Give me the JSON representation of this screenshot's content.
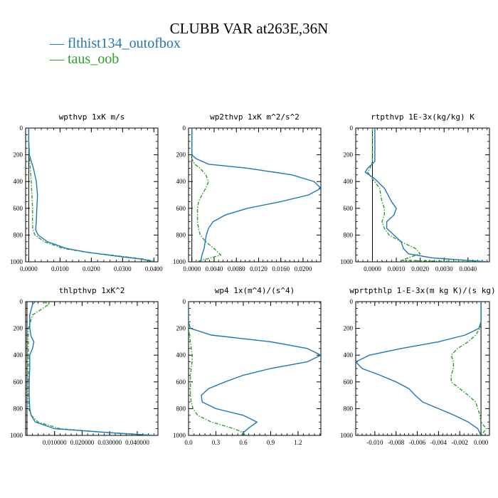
{
  "title": "CLUBB VAR at263E,36N",
  "legend": [
    {
      "label": "flthist134_outofbox",
      "color": "#1f77b4",
      "dash": "solid"
    },
    {
      "label": "taus_oob",
      "color": "#2ca02c",
      "dash": "dashdot"
    }
  ],
  "chart_data": [
    {
      "type": "line",
      "title": "wpthvp  1xK m/s",
      "ylim": [
        1000,
        0
      ],
      "xlim": [
        -0.001,
        0.0413
      ],
      "xticks": [
        0,
        0.01,
        0.02,
        0.03,
        0.04
      ],
      "xtick_labels": [
        "0.0000",
        "0.0100",
        "0.0200",
        "0.0300",
        "0.0400"
      ],
      "yticks": [
        0,
        200,
        400,
        600,
        800,
        1000
      ],
      "ytick_labels": [
        "0",
        "200",
        "400",
        "600",
        "800",
        "1000"
      ],
      "y": [
        0,
        100,
        200,
        250,
        300,
        400,
        500,
        600,
        700,
        760,
        800,
        850,
        900,
        930,
        960,
        980,
        1000
      ],
      "series": [
        {
          "name": "flthist134_outofbox",
          "color": "#1f77b4",
          "values": [
            0,
            0,
            0.0002,
            0.0008,
            0.0015,
            0.0024,
            0.0028,
            0.0026,
            0.0024,
            0.0022,
            0.003,
            0.006,
            0.012,
            0.019,
            0.029,
            0.036,
            0.04
          ]
        },
        {
          "name": "taus_oob",
          "color": "#2ca02c",
          "values": [
            0,
            0,
            0,
            0.0003,
            0.0005,
            0.0008,
            0.001,
            0.0012,
            0.0012,
            0.0013,
            0.002,
            0.005,
            0.011,
            0.019,
            0.03,
            0.037,
            0.0405
          ]
        }
      ]
    },
    {
      "type": "line",
      "title": "wp2thvp  1xK m^2/s^2",
      "ylim": [
        1000,
        0
      ],
      "xlim": [
        -0.0006,
        0.0232
      ],
      "xticks": [
        0,
        0.004,
        0.008,
        0.012,
        0.016,
        0.02
      ],
      "xtick_labels": [
        "0.0000",
        "0.0040",
        "0.0080",
        "0.0120",
        "0.0160",
        "0.0200"
      ],
      "yticks": [
        0,
        200,
        400,
        600,
        800,
        1000
      ],
      "ytick_labels": [
        "0",
        "200",
        "400",
        "600",
        "800",
        "1000"
      ],
      "y": [
        0,
        150,
        200,
        230,
        270,
        300,
        350,
        400,
        450,
        500,
        550,
        600,
        650,
        700,
        750,
        800,
        850,
        900,
        950,
        1000
      ],
      "series": [
        {
          "name": "flthist134_outofbox",
          "color": "#1f77b4",
          "values": [
            0,
            0,
            0,
            0.0008,
            0.003,
            0.01,
            0.018,
            0.022,
            0.0232,
            0.021,
            0.016,
            0.01,
            0.006,
            0.0038,
            0.003,
            0.0026,
            0.0024,
            0.0022,
            0.0018,
            0.0016
          ]
        },
        {
          "name": "taus_oob",
          "color": "#2ca02c",
          "values": [
            0,
            0,
            0,
            0,
            0.0005,
            0.0015,
            0.0025,
            0.003,
            0.0025,
            0.0018,
            0.0012,
            0.001,
            0.001,
            0.001,
            0.0012,
            0.0015,
            0.0025,
            0.004,
            0.0052,
            0.0008
          ]
        }
      ]
    },
    {
      "type": "line",
      "title": "rtpthvp  1E-3x(kg/kg) K",
      "ylim": [
        1000,
        0
      ],
      "xlim": [
        -0.0007,
        0.0049
      ],
      "xticks": [
        0,
        0.001,
        0.002,
        0.003,
        0.004
      ],
      "xtick_labels": [
        "0.0000",
        "0.0010",
        "0.0020",
        "0.0030",
        "0.0040"
      ],
      "yticks": [
        0,
        200,
        400,
        600,
        800,
        1000
      ],
      "ytick_labels": [
        "0",
        "200",
        "400",
        "600",
        "800",
        "1000"
      ],
      "y": [
        0,
        150,
        250,
        300,
        330,
        380,
        450,
        550,
        600,
        650,
        700,
        750,
        800,
        850,
        900,
        940,
        970,
        990,
        1000
      ],
      "series": [
        {
          "name": "flthist134_outofbox",
          "color": "#1f77b4",
          "values": [
            0.0001,
            0.0001,
            0.0001,
            -0.0002,
            -0.0003,
            0.0001,
            0.0005,
            0.0008,
            0.001,
            0.0009,
            0.0006,
            0.0006,
            0.0009,
            0.0012,
            0.0013,
            0.0015,
            0.0025,
            0.004,
            0.0048
          ]
        },
        {
          "name": "taus_oob",
          "color": "#2ca02c",
          "values": [
            0,
            0,
            0,
            -0.0001,
            -0.0002,
            0,
            0.0003,
            0.0004,
            0.0005,
            0.0005,
            0.0004,
            0.0005,
            0.0007,
            0.0012,
            0.0018,
            0.002,
            0.0015,
            0.0012,
            0.0045
          ]
        }
      ]
    },
    {
      "type": "line",
      "title": "thlpthvp  1xK^2",
      "ylim": [
        1000,
        0
      ],
      "xlim": [
        -0.0005,
        0.0475
      ],
      "xticks": [
        0.01,
        0.02,
        0.03,
        0.04
      ],
      "xtick_labels": [
        "0.010000",
        "0.020000",
        "0.030000",
        "0.040000"
      ],
      "yticks": [
        0,
        200,
        400,
        600,
        800,
        1000
      ],
      "ytick_labels": [
        "0",
        "200",
        "400",
        "600",
        "800",
        "1000"
      ],
      "y": [
        0,
        20,
        100,
        200,
        260,
        300,
        350,
        400,
        500,
        600,
        700,
        800,
        850,
        900,
        950,
        980,
        1000
      ],
      "series": [
        {
          "name": "flthist134_outofbox",
          "color": "#1f77b4",
          "values": [
            0.003,
            0.002,
            0.001,
            0.001,
            0.0015,
            0.0025,
            0.002,
            0.001,
            0.001,
            0.0008,
            0.0008,
            0.001,
            0.0015,
            0.003,
            0.01,
            0.03,
            0.046
          ]
        },
        {
          "name": "taus_oob",
          "color": "#2ca02c",
          "values": [
            0.006,
            0.008,
            0.002,
            0.0005,
            0.0005,
            0.0005,
            0.0005,
            0.0005,
            0.0005,
            0.0005,
            0.0005,
            0.0006,
            0.0015,
            0.004,
            0.012,
            0.03,
            0.046
          ]
        }
      ]
    },
    {
      "type": "line",
      "title": "wp4  1x(m^4)/(s^4)",
      "ylim": [
        1000,
        0
      ],
      "xlim": [
        0,
        1.45
      ],
      "xticks": [
        0,
        0.3,
        0.6,
        0.9,
        1.2
      ],
      "xtick_labels": [
        "0.0",
        "0.3",
        "0.6",
        "0.9",
        "1.2"
      ],
      "yticks": [
        0,
        200,
        400,
        600,
        800,
        1000
      ],
      "ytick_labels": [
        "0",
        "200",
        "400",
        "600",
        "800",
        "1000"
      ],
      "y": [
        0,
        150,
        200,
        250,
        300,
        350,
        400,
        450,
        500,
        550,
        600,
        650,
        700,
        750,
        800,
        850,
        900,
        950,
        980,
        1000
      ],
      "series": [
        {
          "name": "flthist134_outofbox",
          "color": "#1f77b4",
          "values": [
            0,
            0,
            0.02,
            0.25,
            0.9,
            1.3,
            1.45,
            1.3,
            0.9,
            0.6,
            0.4,
            0.22,
            0.14,
            0.15,
            0.3,
            0.6,
            0.75,
            0.65,
            0.6,
            0.58
          ]
        },
        {
          "name": "taus_oob",
          "color": "#2ca02c",
          "values": [
            0,
            0,
            0,
            0.01,
            0.02,
            0.03,
            0.04,
            0.04,
            0.03,
            0.02,
            0.02,
            0.02,
            0.02,
            0.03,
            0.05,
            0.1,
            0.25,
            0.5,
            0.6,
            0.62
          ]
        }
      ]
    },
    {
      "type": "line",
      "title": "wprtpthlp  1-E-3x(m kg K)/(s kg)",
      "ylim": [
        1000,
        0
      ],
      "xlim": [
        -0.0118,
        0.0008
      ],
      "xticks": [
        -0.01,
        -0.008,
        -0.006,
        -0.004,
        -0.002,
        0
      ],
      "xtick_labels": [
        "-0.010",
        "-0.008",
        "-0.006",
        "-0.004",
        "-0.002",
        "0.000"
      ],
      "yticks": [
        0,
        200,
        400,
        600,
        800,
        1000
      ],
      "ytick_labels": [
        "0",
        "200",
        "400",
        "600",
        "800",
        "1000"
      ],
      "y": [
        0,
        150,
        200,
        250,
        300,
        350,
        400,
        450,
        500,
        550,
        600,
        650,
        700,
        750,
        800,
        850,
        900,
        950,
        1000
      ],
      "series": [
        {
          "name": "flthist134_outofbox",
          "color": "#1f77b4",
          "values": [
            0,
            0,
            -0.0002,
            -0.0015,
            -0.004,
            -0.0075,
            -0.0105,
            -0.0118,
            -0.0112,
            -0.0095,
            -0.008,
            -0.0068,
            -0.0062,
            -0.0055,
            -0.004,
            -0.0025,
            -0.0012,
            -0.0003,
            0
          ]
        },
        {
          "name": "taus_oob",
          "color": "#2ca02c",
          "values": [
            0,
            0,
            -0.0001,
            -0.0005,
            -0.0012,
            -0.0022,
            -0.0028,
            -0.0026,
            -0.0026,
            -0.0028,
            -0.0028,
            -0.002,
            -0.0012,
            -0.0005,
            -0.0003,
            -0.0001,
            0,
            0.0005,
            0
          ]
        }
      ]
    }
  ]
}
